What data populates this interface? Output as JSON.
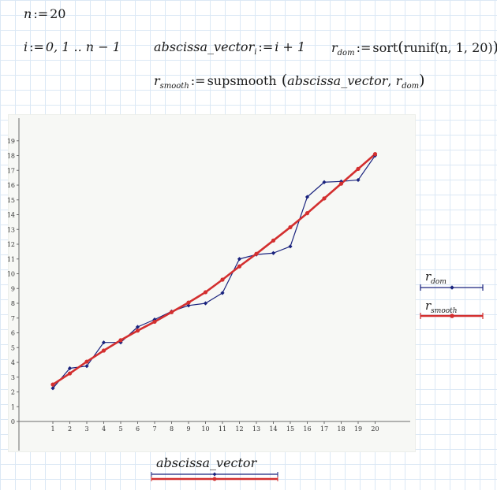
{
  "worksheet": {
    "line1": {
      "var": "n",
      "op": ":=",
      "value": "20"
    },
    "line2": {
      "i_def": {
        "var": "i",
        "op": ":=",
        "value": "0, 1 .. n − 1"
      },
      "abscissa_def": {
        "var": "abscissa_vector",
        "sub": "i",
        "op": ":=",
        "value": "i + 1"
      },
      "rdom_def": {
        "var": "r",
        "sub": "dom",
        "op": ":=",
        "fn": "sort",
        "args": "runif(n, 1, 20)"
      }
    },
    "line3": {
      "smooth_def": {
        "var": "r",
        "sub": "smooth",
        "op": ":=",
        "fn": "supsmooth",
        "arg1": "abscissa_vector",
        "arg2_var": "r",
        "arg2_sub": "dom"
      }
    }
  },
  "chart_data": {
    "type": "line",
    "x": [
      1,
      2,
      3,
      4,
      5,
      6,
      7,
      8,
      9,
      10,
      11,
      12,
      13,
      14,
      15,
      16,
      17,
      18,
      19,
      20
    ],
    "x_ticks": [
      "1",
      "2",
      "3",
      "4",
      "5",
      "6",
      "7",
      "8",
      "9",
      "10",
      "11",
      "12",
      "13",
      "14",
      "15",
      "16",
      "17",
      "18",
      "19",
      "20"
    ],
    "y_ticks": [
      "0",
      "1",
      "2",
      "3",
      "4",
      "5",
      "6",
      "7",
      "8",
      "9",
      "10",
      "11",
      "12",
      "13",
      "14",
      "15",
      "16",
      "17",
      "18",
      "19"
    ],
    "xlim": [
      0,
      21
    ],
    "ylim": [
      0,
      20
    ],
    "xlabel": "abscissa_vector",
    "series": [
      {
        "name": "r_dom",
        "legend_var": "r",
        "legend_sub": "dom",
        "color": "#1a237e",
        "values": [
          2.25,
          3.6,
          3.75,
          5.35,
          5.35,
          6.4,
          6.9,
          7.45,
          7.85,
          8.0,
          8.7,
          11.0,
          11.3,
          11.4,
          11.85,
          15.2,
          16.2,
          16.25,
          16.35,
          18.0
        ]
      },
      {
        "name": "r_smooth",
        "legend_var": "r",
        "legend_sub": "smooth",
        "color": "#d32f2f",
        "values": [
          2.5,
          3.25,
          4.05,
          4.8,
          5.5,
          6.15,
          6.75,
          7.4,
          8.05,
          8.75,
          9.6,
          10.5,
          11.35,
          12.25,
          13.15,
          14.1,
          15.1,
          16.1,
          17.1,
          18.1
        ]
      }
    ],
    "legend_position": "right",
    "grid": false
  }
}
